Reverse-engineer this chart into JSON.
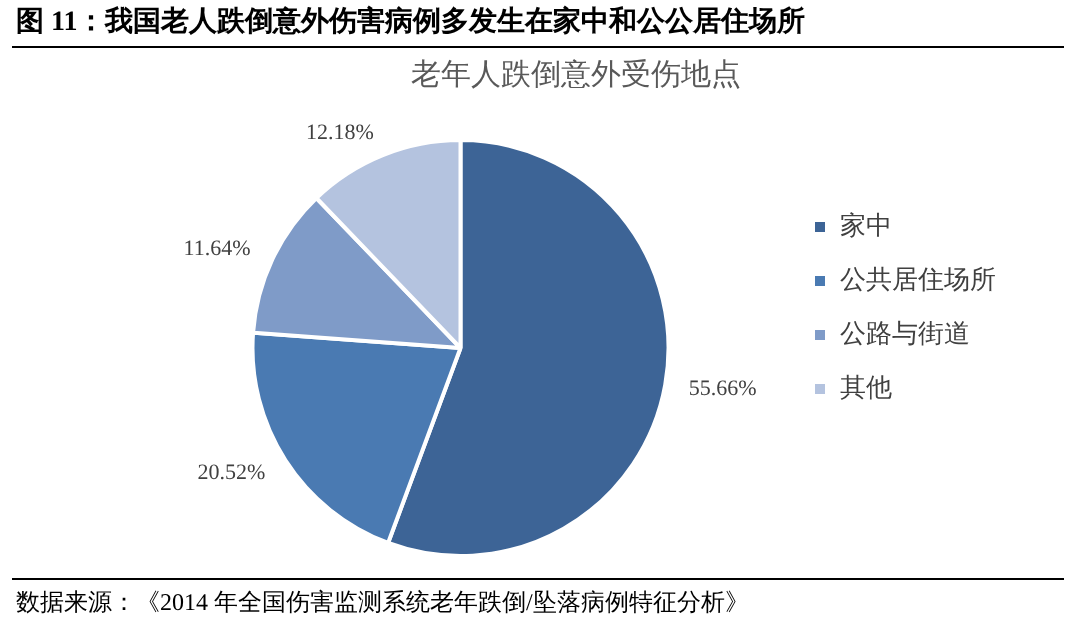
{
  "chart_data": {
    "type": "pie",
    "title": "图 11：我国老人跌倒意外伤害病例多发生在家中和公公居住场所",
    "subtitle": "老年人跌倒意外受伤地点",
    "categories": [
      "家中",
      "公共居住场所",
      "公路与街道",
      "其他"
    ],
    "values": [
      55.66,
      20.52,
      11.64,
      12.18
    ],
    "colors": [
      "#3d6496",
      "#4a7ab2",
      "#7f9bc8",
      "#b4c3df"
    ],
    "value_labels": [
      "55.66%",
      "20.52%",
      "11.64%",
      "12.18%"
    ],
    "legend": "right",
    "annotations": [
      "数据来源：《2014 年全国伤害监测系统老年跌倒/坠落病例特征分析》"
    ]
  }
}
